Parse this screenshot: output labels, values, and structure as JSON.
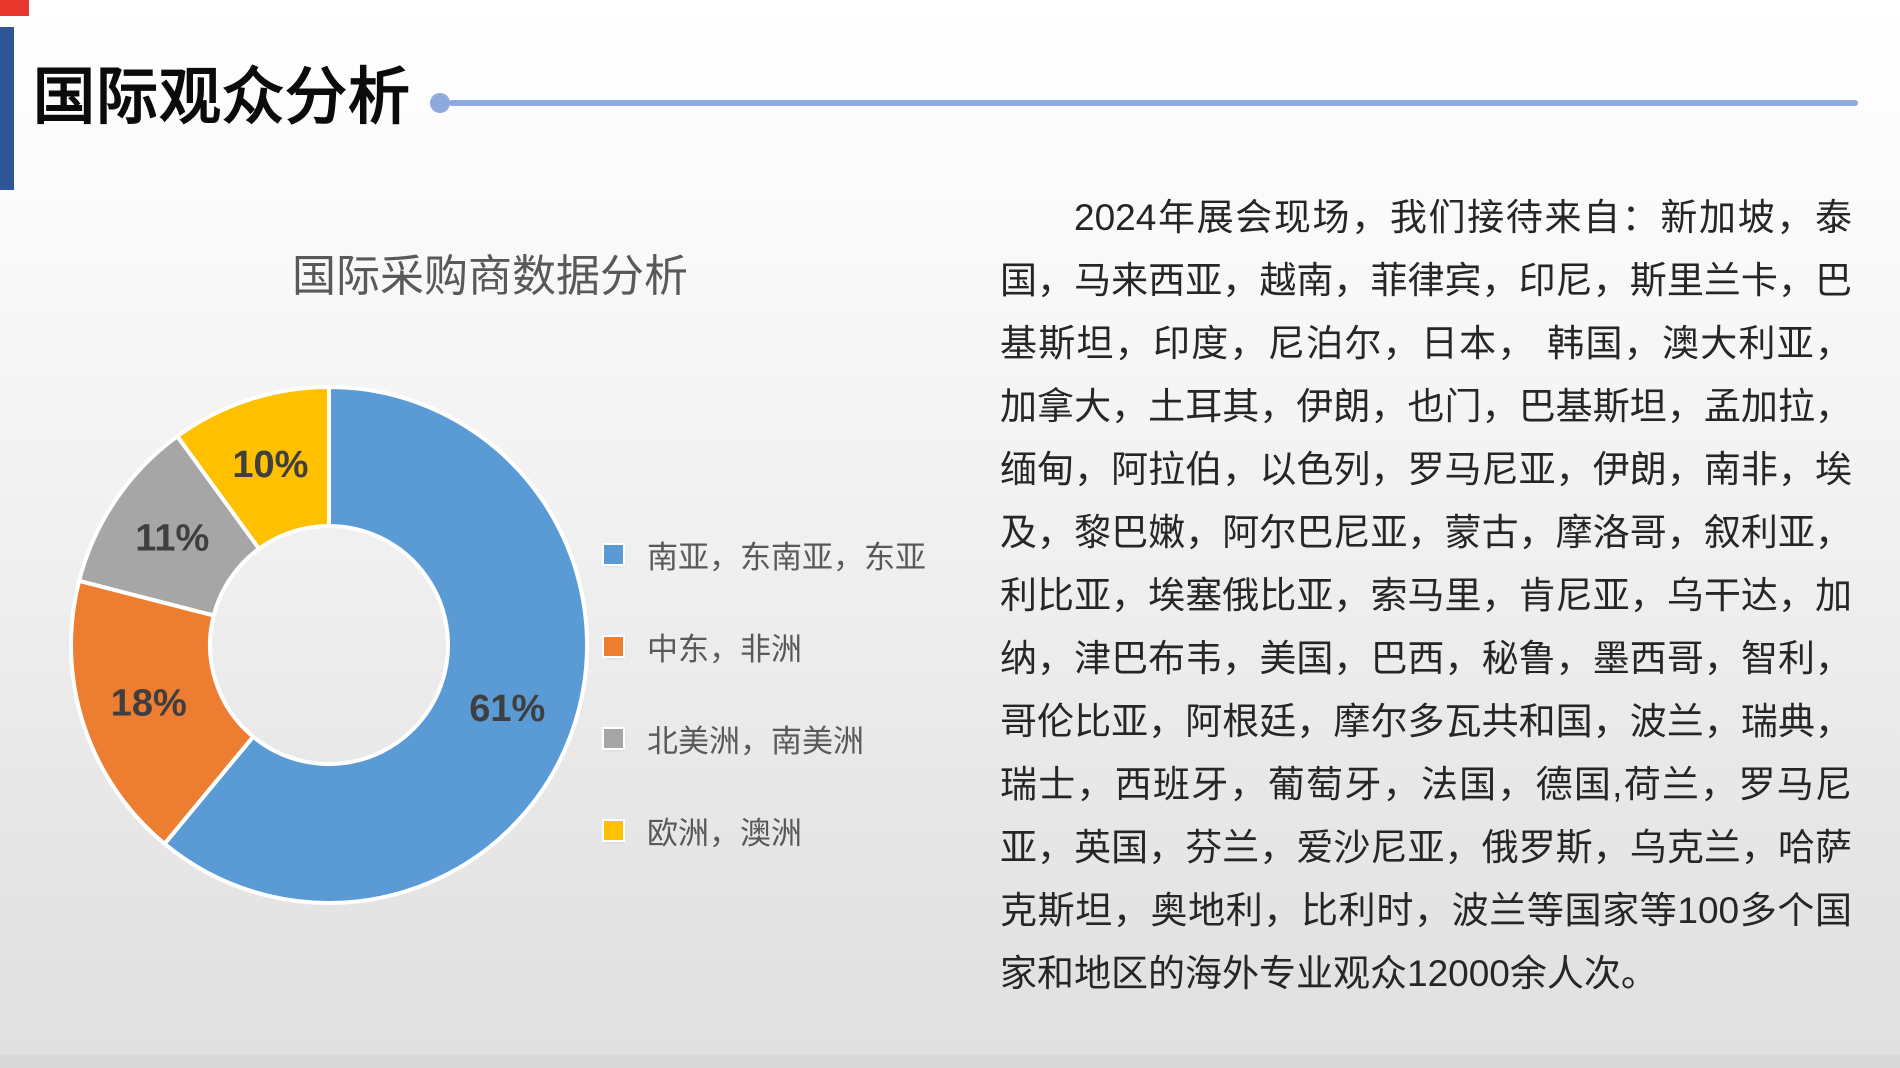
{
  "slide": {
    "title": "国际观众分析"
  },
  "chart_data": {
    "type": "pie",
    "subtype": "donut",
    "title": "国际采购商数据分析",
    "categories": [
      "南亚，东南亚，东亚",
      "中东，非洲",
      "北美洲，南美洲",
      "欧洲，澳洲"
    ],
    "values": [
      61,
      18,
      11,
      10
    ],
    "unit": "%",
    "data_labels": [
      "61%",
      "18%",
      "11%",
      "10%"
    ],
    "colors": [
      "#5B9BD5",
      "#ED7D31",
      "#A6A6A6",
      "#FFC000"
    ],
    "start_angle_deg": 0,
    "direction": "clockwise",
    "hole_ratio": 0.46,
    "legend_position": "right",
    "label_color": "#3F3F3F"
  },
  "paragraph": {
    "text": "2024年展会现场，我们接待来自：新加坡，泰国，马来西亚，越南，菲律宾，印尼，斯里兰卡，巴基斯坦，印度，尼泊尔，日本， 韩国，澳大利亚，加拿大，土耳其，伊朗，也门，巴基斯坦，孟加拉，缅甸，阿拉伯，以色列，罗马尼亚，伊朗，南非，埃及，黎巴嫩，阿尔巴尼亚，蒙古，摩洛哥，叙利亚，利比亚，埃塞俄比亚，索马里，肯尼亚，乌干达，加纳，津巴布韦，美国，巴西，秘鲁，墨西哥，智利，哥伦比亚，阿根廷，摩尔多瓦共和国，波兰，瑞典，瑞士，西班牙，葡萄牙，法国，德国,荷兰，罗马尼亚，英国，芬兰，爱沙尼亚，俄罗斯，乌克兰，哈萨克斯坦，奥地利，比利时，波兰等国家等100多个国家和地区的海外专业观众12000余人次。"
  },
  "colors": {
    "red_mark": "#E8382D",
    "accent_bar": "#2F5597",
    "title_rule": "#8EA9DB",
    "title_dot": "#8EA9DB"
  }
}
